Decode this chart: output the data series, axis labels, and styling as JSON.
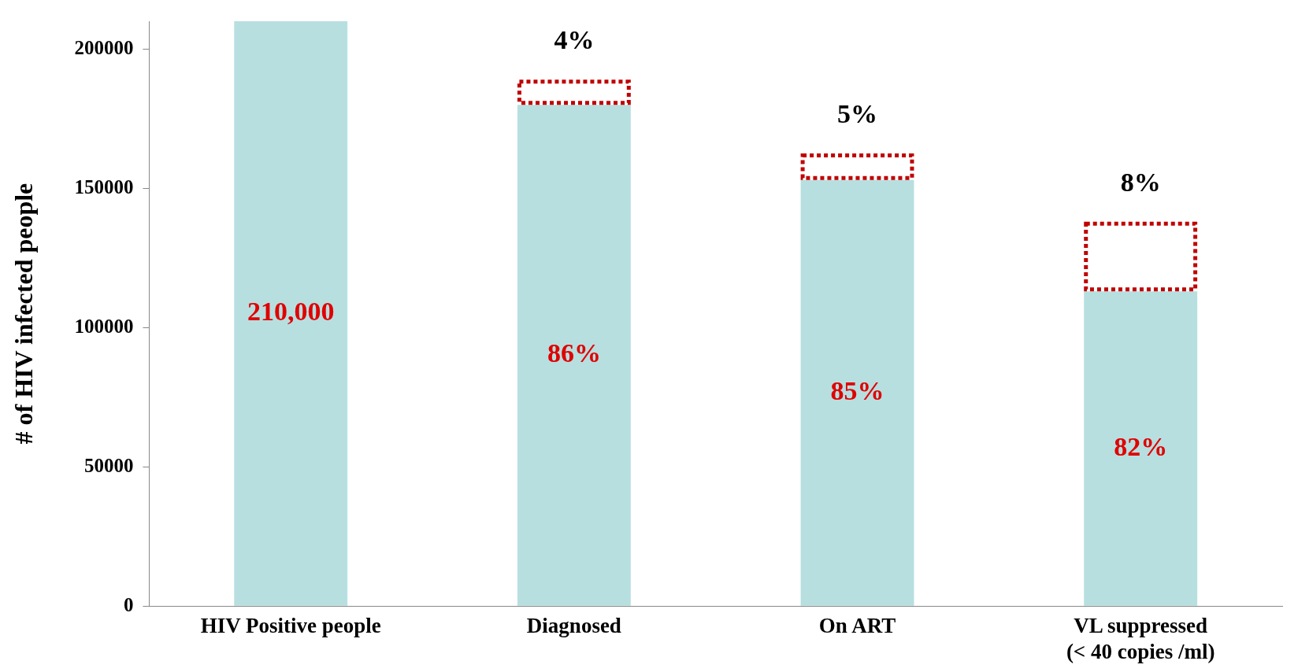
{
  "chart_data": {
    "type": "bar",
    "ylabel": "# of HIV infected people",
    "categories": [
      "HIV Positive people",
      "Diagnosed",
      "On ART",
      "VL suppressed\n(< 40 copies /ml)"
    ],
    "stacked": true,
    "series": [
      {
        "color": "#b7dfe0",
        "values": [
          210000,
          180000,
          153000,
          113000
        ]
      },
      {
        "color": "#c00000",
        "line_style": "dotted",
        "values": [
          null,
          9000,
          9500,
          25000
        ]
      }
    ],
    "annotations": [
      "210,000",
      "86%",
      "85%",
      "82%",
      "4%",
      "5%",
      "8%"
    ],
    "ylim": [
      0,
      210000
    ],
    "yticks": [
      0,
      50000,
      100000,
      150000,
      200000
    ],
    "grid": false,
    "legend": false
  }
}
